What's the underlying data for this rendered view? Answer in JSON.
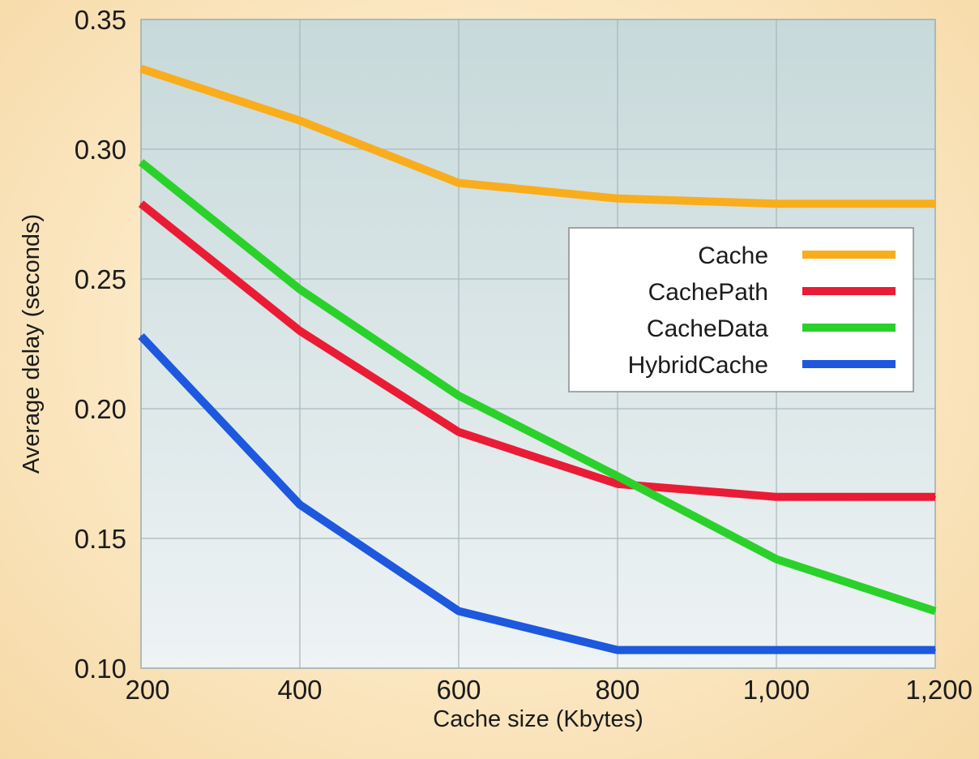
{
  "chart_data": {
    "type": "line",
    "title": "",
    "xlabel": "Cache size (Kbytes)",
    "ylabel": "Average delay (seconds)",
    "x": [
      200,
      400,
      600,
      800,
      1000,
      1200
    ],
    "x_tick_labels": [
      "200",
      "400",
      "600",
      "800",
      "1,000",
      "1,200"
    ],
    "xlim": [
      200,
      1200
    ],
    "ylim": [
      0.1,
      0.35
    ],
    "y_ticks": [
      0.1,
      0.15,
      0.2,
      0.25,
      0.3,
      0.35
    ],
    "y_tick_labels": [
      "0.10",
      "0.15",
      "0.20",
      "0.25",
      "0.30",
      "0.35"
    ],
    "grid": true,
    "legend_position": "right",
    "series": [
      {
        "name": "Cache",
        "color": "#f9ad1c",
        "values": [
          0.331,
          0.311,
          0.287,
          0.281,
          0.279,
          0.279
        ]
      },
      {
        "name": "CachePath",
        "color": "#ea1c35",
        "values": [
          0.279,
          0.23,
          0.191,
          0.171,
          0.166,
          0.166
        ]
      },
      {
        "name": "CacheData",
        "color": "#2bd12b",
        "values": [
          0.295,
          0.246,
          0.205,
          0.174,
          0.142,
          0.122
        ]
      },
      {
        "name": "HybridCache",
        "color": "#1d58de",
        "values": [
          0.228,
          0.163,
          0.122,
          0.107,
          0.107,
          0.107
        ]
      }
    ]
  }
}
